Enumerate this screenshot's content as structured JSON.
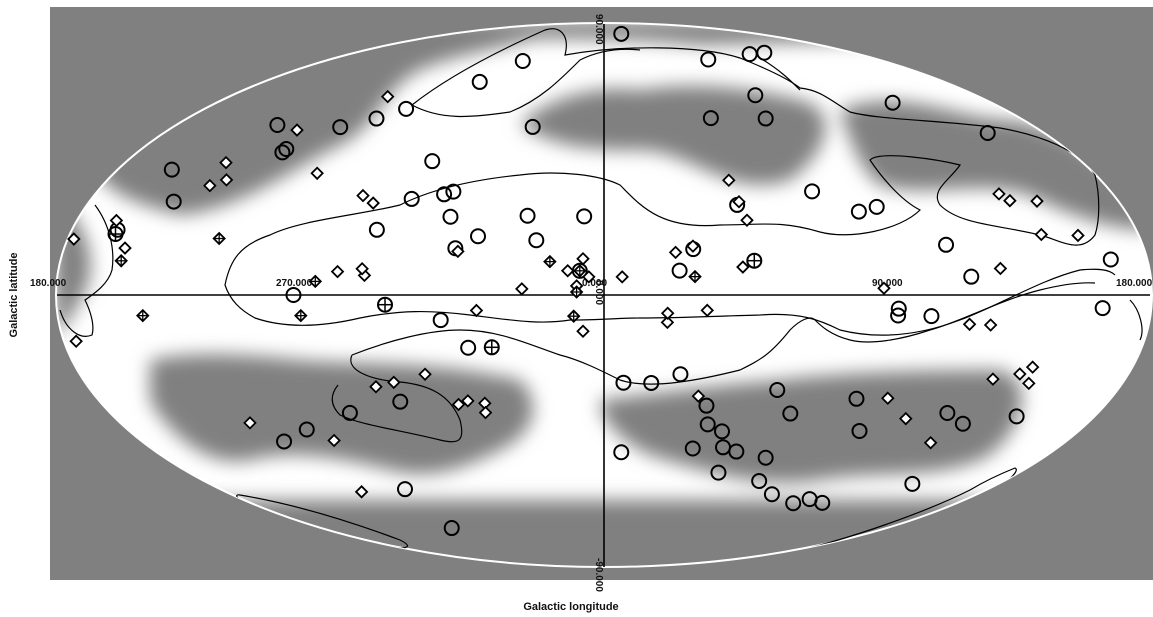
{
  "chart_data": {
    "type": "scatter",
    "projection": "Aitoff (galactic)",
    "xlabel": "Galactic longitude",
    "ylabel": "Galactic latitude",
    "longitude_ticks": [
      "180.000",
      "270.000",
      "0.000",
      "90.000",
      "180.000"
    ],
    "latitude_ticks": [
      "90.000",
      "0.000",
      "-90.000"
    ],
    "colors": {
      "background": "#808080",
      "sky": "#ffffff",
      "marker": "#000000"
    },
    "series": [
      {
        "marker": "circle",
        "points": [
          [
            270,
            62
          ],
          [
            260,
            74
          ],
          [
            215,
            71
          ],
          [
            130,
            40
          ],
          [
            283,
            32
          ],
          [
            225,
            72
          ],
          [
            199,
            40
          ],
          [
            192,
            8
          ],
          [
            215,
            52
          ],
          [
            239,
            5
          ],
          [
            263,
            26
          ],
          [
            270,
            25
          ],
          [
            245,
            14
          ],
          [
            305,
            57
          ],
          [
            304,
            86
          ],
          [
            335,
            8
          ],
          [
            330,
            15
          ],
          [
            312,
            29
          ],
          [
            279,
            55
          ],
          [
            35,
            55
          ],
          [
            80,
            75
          ],
          [
            86,
            67
          ],
          [
            103,
            56
          ],
          [
            110,
            52
          ],
          [
            145,
            45
          ],
          [
            120,
            48
          ],
          [
            70,
            42
          ],
          [
            70,
            30
          ],
          [
            59,
            32
          ],
          [
            56,
            33
          ],
          [
            54,
            25
          ],
          [
            27,
            26
          ],
          [
            43,
            19
          ],
          [
            50,
            15
          ],
          [
            78,
            20
          ],
          [
            130,
            39
          ],
          [
            165,
            15
          ],
          [
            152,
            23
          ],
          [
            162,
            30
          ],
          [
            8,
            8
          ],
          [
            7,
            26
          ],
          [
            23,
            18
          ],
          [
            102,
            0
          ],
          [
            252,
            -6
          ],
          [
            263,
            -4
          ],
          [
            263,
            -6
          ],
          [
            196,
            -3
          ],
          [
            54,
            -8
          ],
          [
            206,
            -30
          ],
          [
            222,
            -34
          ],
          [
            210,
            -50
          ],
          [
            231,
            -32
          ],
          [
            267,
            -31
          ],
          [
            297,
            -30
          ],
          [
            257,
            -40
          ],
          [
            288,
            -37
          ],
          [
            333,
            -26
          ],
          [
            321,
            -36
          ],
          [
            318,
            -42
          ],
          [
            311,
            -44
          ],
          [
            300,
            -50
          ],
          [
            285,
            -51
          ],
          [
            262,
            -61
          ],
          [
            231,
            -60
          ],
          [
            240,
            -60
          ],
          [
            244,
            -62
          ],
          [
            307,
            -49
          ],
          [
            320,
            -50
          ],
          [
            277,
            -58
          ],
          [
            301,
            -57
          ],
          [
            343,
            -29
          ],
          [
            353,
            -29
          ],
          [
            46,
            -17
          ],
          [
            76,
            -33
          ],
          [
            118,
            -38
          ],
          [
            109,
            -58
          ],
          [
            131,
            -40
          ],
          [
            97,
            -35
          ],
          [
            126,
            -70
          ],
          [
            352,
            -52
          ]
        ]
      },
      {
        "marker": "diamond",
        "points": [
          [
            120,
            58
          ],
          [
            135,
            45
          ],
          [
            110,
            35
          ],
          [
            88,
            30
          ],
          [
            83,
            28
          ],
          [
            146,
            34
          ],
          [
            140,
            30
          ],
          [
            144,
            28
          ],
          [
            218,
            26
          ],
          [
            216,
            24
          ],
          [
            207,
            23
          ],
          [
            200,
            14
          ],
          [
            212,
            15
          ],
          [
            311,
            30
          ],
          [
            312,
            37
          ],
          [
            330,
            16
          ],
          [
            310,
            24
          ],
          [
            314,
            9
          ],
          [
            336,
            14
          ],
          [
            354,
            6
          ],
          [
            5,
            6
          ],
          [
            12,
            8
          ],
          [
            7,
            12
          ],
          [
            49,
            14
          ],
          [
            79,
            6
          ],
          [
            88,
            7
          ],
          [
            160,
            11
          ],
          [
            167,
            17
          ],
          [
            178,
            12
          ],
          [
            268,
            2
          ],
          [
            239,
            -8
          ],
          [
            232,
            -8
          ],
          [
            229,
            7
          ],
          [
            9,
            3
          ],
          [
            326,
            -5
          ],
          [
            339,
            -9
          ],
          [
            27,
            2
          ],
          [
            80,
            8
          ],
          [
            42,
            -5
          ],
          [
            176,
            -10
          ],
          [
            224,
            -22
          ],
          [
            213,
            -18
          ],
          [
            211,
            -22
          ],
          [
            216,
            -20
          ],
          [
            226,
            -40
          ],
          [
            244,
            -35
          ],
          [
            256,
            -30
          ],
          [
            325,
            -33
          ],
          [
            339,
            -6
          ],
          [
            7,
            -12
          ],
          [
            63,
            -25
          ],
          [
            51,
            -34
          ],
          [
            45,
            -35
          ],
          [
            46,
            -38
          ],
          [
            55,
            -35
          ],
          [
            82,
            -28
          ],
          [
            75,
            -27
          ],
          [
            112,
            -42
          ],
          [
            130,
            -56
          ],
          [
            136,
            -34
          ]
        ]
      },
      {
        "marker": "circle-cross",
        "points": [
          [
            310,
            11
          ],
          [
            38,
            -17
          ],
          [
            165,
            14
          ],
          [
            72,
            -3
          ]
        ]
      },
      {
        "marker": "diamond-cross",
        "points": [
          [
            330,
            6
          ],
          [
            18,
            11
          ],
          [
            8,
            8
          ],
          [
            9,
            1
          ],
          [
            100,
            -6
          ],
          [
            95,
            4
          ],
          [
            10,
            -7
          ],
          [
            130,
            15
          ],
          [
            152,
            -5
          ],
          [
            160,
            8
          ]
        ]
      }
    ]
  }
}
